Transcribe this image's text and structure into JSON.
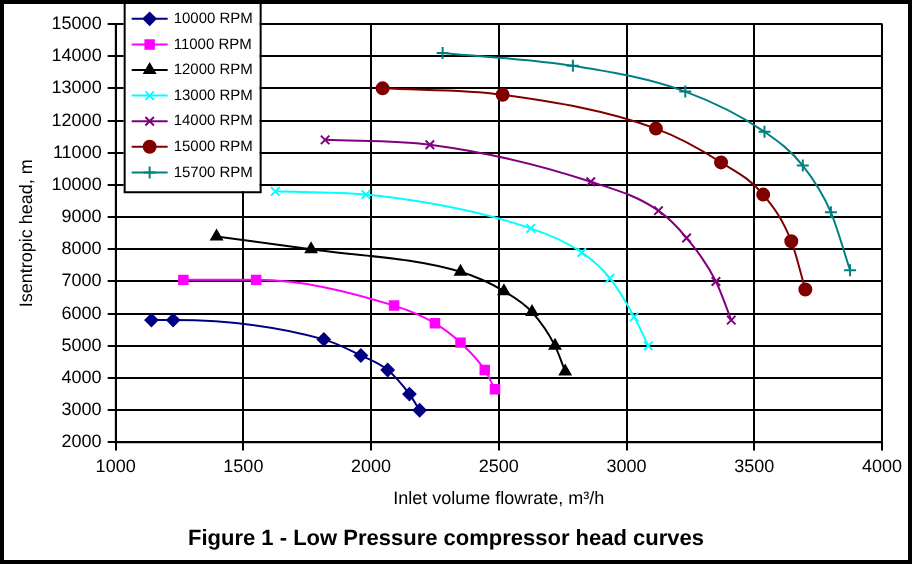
{
  "chart_data": {
    "type": "line",
    "title": "Figure 1 - Low Pressure compressor head curves",
    "xlabel": "Inlet volume flowrate, m³/h",
    "ylabel": "Isentropic head, m",
    "xlim": [
      1000,
      4000
    ],
    "xticks": [
      1000,
      1500,
      2000,
      2500,
      3000,
      3500,
      4000
    ],
    "ylim": [
      2000,
      15000
    ],
    "yticks": [
      2000,
      3000,
      4000,
      5000,
      6000,
      7000,
      8000,
      9000,
      10000,
      11000,
      12000,
      13000,
      14000,
      15000
    ],
    "grid": true,
    "legend": "top left",
    "line_style": "solid",
    "series": [
      {
        "name": "10000 RPM",
        "color": "#000080",
        "marker": "diamond",
        "x": [
          1140,
          1225,
          1815,
          1960,
          2065,
          2150,
          2190
        ],
        "values": [
          5800,
          5800,
          5200,
          4700,
          4250,
          3500,
          3000
        ]
      },
      {
        "name": "11000 RPM",
        "color": "#ff00ff",
        "marker": "square",
        "x": [
          1265,
          1550,
          2090,
          2250,
          2350,
          2445,
          2485
        ],
        "values": [
          7050,
          7050,
          6250,
          5700,
          5100,
          4250,
          3650
        ]
      },
      {
        "name": "12000 RPM",
        "color": "#000000",
        "marker": "triangle",
        "x": [
          1395,
          1765,
          2350,
          2520,
          2630,
          2720,
          2760
        ],
        "values": [
          8400,
          8000,
          7300,
          6700,
          6050,
          5000,
          4200
        ]
      },
      {
        "name": "13000 RPM",
        "color": "#00ffff",
        "marker": "cross",
        "x": [
          1625,
          1980,
          2625,
          2825,
          2935,
          3030,
          3085
        ],
        "values": [
          9800,
          9700,
          8650,
          7900,
          7100,
          5900,
          5000
        ]
      },
      {
        "name": "14000 RPM",
        "color": "#800080",
        "marker": "cross",
        "x": [
          1820,
          2230,
          2860,
          3125,
          3235,
          3350,
          3410
        ],
        "values": [
          11400,
          11250,
          10100,
          9200,
          8350,
          7000,
          5800
        ]
      },
      {
        "name": "15000 RPM",
        "color": "#800000",
        "marker": "circle",
        "x": [
          2045,
          2515,
          3115,
          3370,
          3535,
          3645,
          3700
        ],
        "values": [
          13000,
          12800,
          11750,
          10700,
          9700,
          8250,
          6750
        ]
      },
      {
        "name": "15700 RPM",
        "color": "#008080",
        "marker": "plus",
        "x": [
          2280,
          2790,
          3230,
          3540,
          3690,
          3800,
          3875
        ],
        "values": [
          14100,
          13700,
          12900,
          11650,
          10600,
          9150,
          7350
        ]
      }
    ]
  }
}
